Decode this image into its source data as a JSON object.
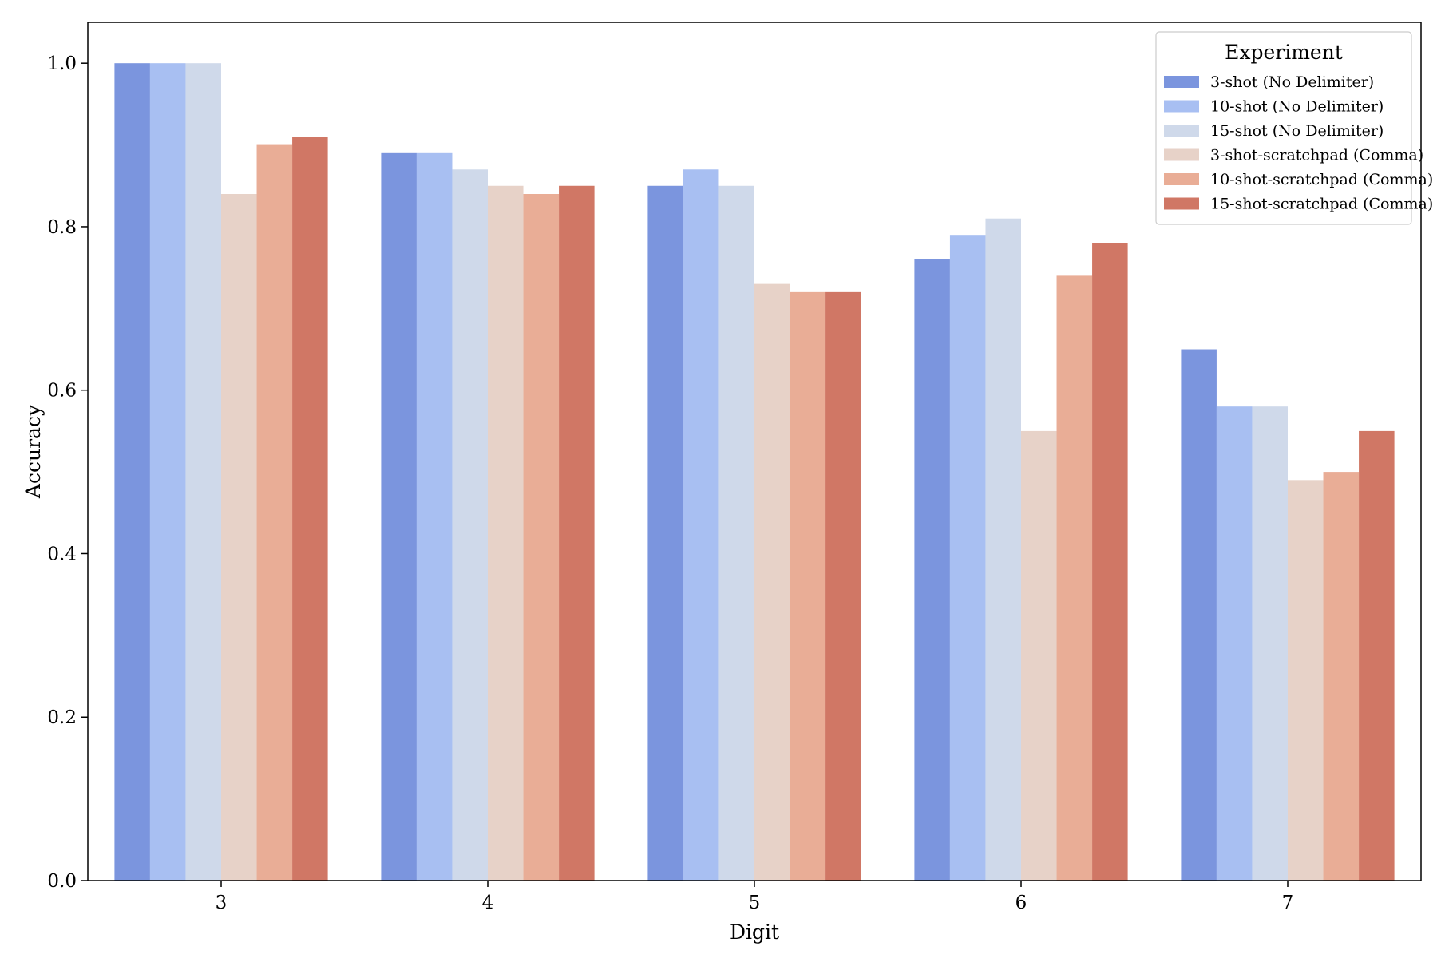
{
  "chart_data": {
    "type": "bar",
    "title": "",
    "xlabel": "Digit",
    "ylabel": "Accuracy",
    "categories": [
      "3",
      "4",
      "5",
      "6",
      "7"
    ],
    "ylim": [
      0.0,
      1.05
    ],
    "yticks": [
      0.0,
      0.2,
      0.4,
      0.6,
      0.8,
      1.0
    ],
    "ytick_labels": [
      "0.0",
      "0.2",
      "0.4",
      "0.6",
      "0.8",
      "1.0"
    ],
    "grid": false,
    "legend": {
      "title": "Experiment",
      "placement": "top-right"
    },
    "series": [
      {
        "name": "3-shot (No Delimiter)",
        "color": "#7b95de",
        "values": [
          1.0,
          0.89,
          0.85,
          0.76,
          0.65
        ]
      },
      {
        "name": "10-shot (No Delimiter)",
        "color": "#a8bff2",
        "values": [
          1.0,
          0.89,
          0.87,
          0.79,
          0.58
        ]
      },
      {
        "name": "15-shot (No Delimiter)",
        "color": "#cfd9ea",
        "values": [
          1.0,
          0.87,
          0.85,
          0.81,
          0.58
        ]
      },
      {
        "name": "3-shot-scratchpad (Comma)",
        "color": "#e7d2c8",
        "values": [
          0.84,
          0.85,
          0.73,
          0.55,
          0.49
        ]
      },
      {
        "name": "10-shot-scratchpad (Comma)",
        "color": "#e9ad96",
        "values": [
          0.9,
          0.84,
          0.72,
          0.74,
          0.5
        ]
      },
      {
        "name": "15-shot-scratchpad (Comma)",
        "color": "#d07765",
        "values": [
          0.91,
          0.85,
          0.72,
          0.78,
          0.55
        ]
      }
    ]
  }
}
